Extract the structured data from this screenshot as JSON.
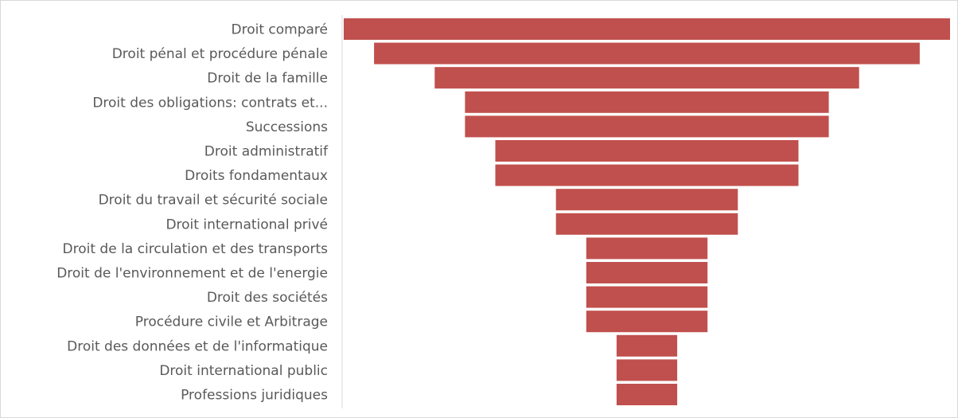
{
  "chart_data": {
    "type": "bar",
    "orientation": "horizontal",
    "style": "funnel",
    "categories": [
      "Droit comparé",
      "Droit pénal et procédure pénale",
      "Droit de la famille",
      "Droit des obligations: contrats et...",
      "Successions",
      "Droit administratif",
      "Droits fondamentaux",
      "Droit du travail et sécurité sociale",
      "Droit international privé",
      "Droit de la circulation et des transports",
      "Droit de l'environnement et de l'energie",
      "Droit des sociétés",
      "Procédure civile et Arbitrage",
      "Droit des données et de l'informatique",
      "Droit international public",
      "Professions juridiques"
    ],
    "values": [
      20,
      18,
      14,
      12,
      12,
      10,
      10,
      6,
      6,
      4,
      4,
      4,
      4,
      2,
      2,
      2
    ],
    "colors": {
      "bar": "#c0504d",
      "label": "#595959",
      "axis": "#d9d9d9"
    },
    "title": "",
    "xlabel": "",
    "ylabel": "",
    "legend": "none",
    "grid": false
  }
}
